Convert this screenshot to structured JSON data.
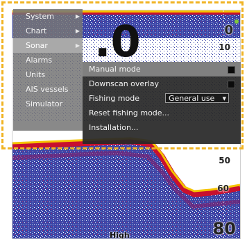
{
  "main_menu": {
    "items": [
      {
        "label": "System",
        "has_submenu": true
      },
      {
        "label": "Chart",
        "has_submenu": true
      },
      {
        "label": "Sonar",
        "has_submenu": true,
        "active": true
      },
      {
        "label": "Alarms"
      },
      {
        "label": "Units"
      },
      {
        "label": "AIS vessels"
      },
      {
        "label": "Simulator"
      }
    ]
  },
  "sonar_submenu": {
    "manual_mode": {
      "label": "Manual mode",
      "checked": false
    },
    "downscan_overlay": {
      "label": "Downscan overlay",
      "checked": false
    },
    "fishing_mode": {
      "label": "Fishing mode",
      "value": "General use"
    },
    "reset_fishing_mode": {
      "label": "Reset fishing mode..."
    },
    "installation": {
      "label": "Installation..."
    }
  },
  "sonar": {
    "depth_readout": ".0",
    "range_top": "0",
    "range_bottom": "80",
    "scale_labels": {
      "s10": "10",
      "s50": "50",
      "s60": "60"
    },
    "frequency": "High"
  },
  "colors": {
    "highlight_frame": "#f0b323",
    "menu_background": "#767676",
    "menu_active": "#a9a9a9",
    "submenu_background": "#282828",
    "submenu_highlight": "#808080",
    "sonar_bottom_red": "#c8102e",
    "sonar_bottom_yellow": "#f5c400",
    "sonar_noise_blue": "#1d2a8c"
  }
}
